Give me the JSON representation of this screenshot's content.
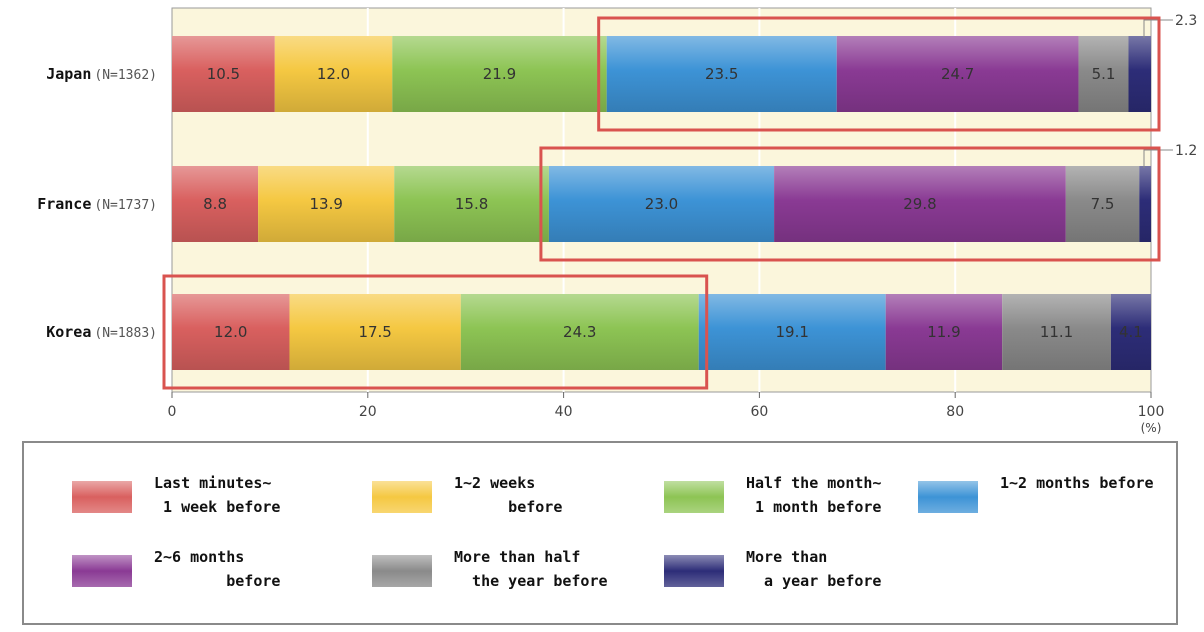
{
  "chart_data": {
    "type": "bar",
    "orientation": "horizontal",
    "stacked": true,
    "xlim": [
      0,
      100
    ],
    "x_ticks": [
      "0",
      "20",
      "40",
      "60",
      "80",
      "100"
    ],
    "x_unit": "(%)",
    "grid": true,
    "categories": [
      "Japan",
      "France",
      "Korea"
    ],
    "category_sublabels": [
      "(N=1362)",
      "(N=1737)",
      "(N=1883)"
    ],
    "series": [
      {
        "name": "Last minutes~ 1 week before",
        "values": [
          10.5,
          8.8,
          12.0
        ],
        "color": "#d9605f"
      },
      {
        "name": "1~2 weeks before",
        "values": [
          12.0,
          13.9,
          17.5
        ],
        "color": "#f5c842"
      },
      {
        "name": "Half the month~ 1 month before",
        "values": [
          21.9,
          15.8,
          24.3
        ],
        "color": "#8dc454"
      },
      {
        "name": "1~2 months before",
        "values": [
          23.5,
          23.0,
          19.1
        ],
        "color": "#3d93d6"
      },
      {
        "name": "2~6 months before",
        "values": [
          24.7,
          29.8,
          11.9
        ],
        "color": "#8a3a94"
      },
      {
        "name": "More than half the year before",
        "values": [
          5.1,
          7.5,
          11.1
        ],
        "color": "#8a8a8a"
      },
      {
        "name": "More than a year before",
        "values": [
          2.3,
          1.2,
          4.1
        ],
        "color": "#2d2d78"
      }
    ],
    "data_labels": [
      [
        "10.5",
        "12.0",
        "21.9",
        "23.5",
        "24.7",
        "5.1",
        ""
      ],
      [
        "8.8",
        "13.9",
        "15.8",
        "23.0",
        "29.8",
        "7.5",
        ""
      ],
      [
        "12.0",
        "17.5",
        "24.3",
        "19.1",
        "11.9",
        "11.1",
        "4.1"
      ]
    ],
    "outside_labels": [
      "2.3",
      "1.2",
      ""
    ],
    "highlights": [
      {
        "row": 0,
        "from": 44.4,
        "to": 100
      },
      {
        "row": 1,
        "from": 38.5,
        "to": 100
      },
      {
        "row": 2,
        "from": 0,
        "to": 53.8
      }
    ],
    "plot_background": "#fbf6dc",
    "highlight_color": "#d9534f"
  },
  "legend": {
    "items": [
      {
        "label": "Last minutes~\n 1 week before"
      },
      {
        "label": "1~2 weeks\n      before"
      },
      {
        "label": "Half the month~\n 1 month before"
      },
      {
        "label": "1~2 months before"
      },
      {
        "label": "2~6 months\n        before"
      },
      {
        "label": "More than half\n  the year before"
      },
      {
        "label": "More than\n  a year before"
      }
    ]
  }
}
